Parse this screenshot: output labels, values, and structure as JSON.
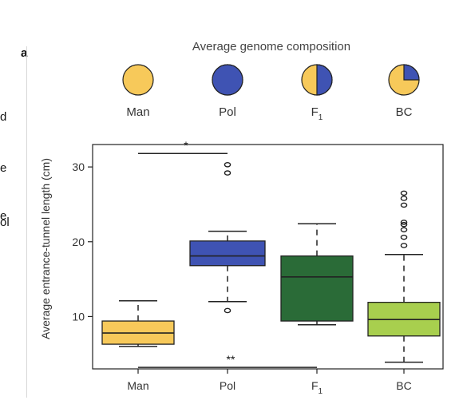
{
  "panel_letter": "a",
  "cut_text": [
    "d",
    "e",
    "e",
    "ol"
  ],
  "colors": {
    "man": "#f7c95a",
    "pol": "#3f53b3",
    "f1": "#2a6b37",
    "bc": "#a8cf4e",
    "outline": "#222222"
  },
  "genome_composition": {
    "title": "Average genome composition",
    "items": [
      {
        "label": "Man",
        "pol_fraction": 0
      },
      {
        "label": "Pol",
        "pol_fraction": 1
      },
      {
        "label": "F",
        "sub": "1",
        "pol_fraction": 0.5
      },
      {
        "label": "BC",
        "pol_fraction": 0.25
      }
    ]
  },
  "chart_data": {
    "type": "box",
    "ylabel": "Average entrance-tunnel length (cm)",
    "ylim": [
      3,
      33
    ],
    "yticks": [
      10,
      20,
      30
    ],
    "categories": [
      {
        "label": "Man",
        "sub": ""
      },
      {
        "label": "Pol",
        "sub": ""
      },
      {
        "label": "F",
        "sub": "1"
      },
      {
        "label": "BC",
        "sub": ""
      }
    ],
    "boxes": [
      {
        "category": "Man",
        "whisker_low": 6.0,
        "q1": 6.3,
        "median": 7.8,
        "q3": 9.4,
        "whisker_high": 12.1,
        "outliers": []
      },
      {
        "category": "Pol",
        "whisker_low": 12.0,
        "q1": 16.8,
        "median": 18.1,
        "q3": 20.1,
        "whisker_high": 21.4,
        "outliers": [
          10.8,
          29.2,
          30.3
        ]
      },
      {
        "category": "F1",
        "whisker_low": 8.9,
        "q1": 9.4,
        "median": 15.3,
        "q3": 18.1,
        "whisker_high": 22.4,
        "outliers": []
      },
      {
        "category": "BC",
        "whisker_low": 3.9,
        "q1": 7.4,
        "median": 9.6,
        "q3": 11.9,
        "whisker_high": 18.3,
        "outliers": [
          19.5,
          20.6,
          21.6,
          22.3,
          22.6,
          24.9,
          25.8,
          26.5
        ]
      }
    ],
    "annotations": [
      {
        "text": "*",
        "from": "Man",
        "to": "Pol",
        "y": 31.8
      },
      {
        "text": "**",
        "from": "Man",
        "to": "F1",
        "y": 3.2
      }
    ],
    "grid": false,
    "legend": "none"
  }
}
